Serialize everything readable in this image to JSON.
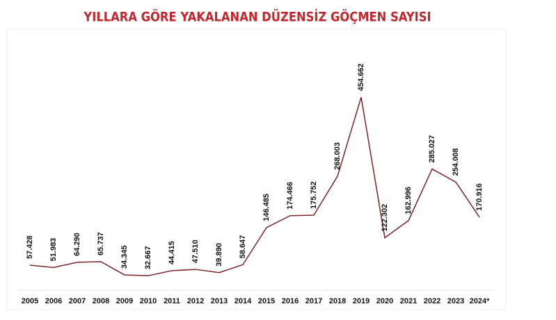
{
  "chart_data": {
    "type": "line",
    "title": "YILLARA GÖRE YAKALANAN DÜZENSİZ GÖÇMEN SAYISI",
    "categories": [
      "2005",
      "2006",
      "2007",
      "2008",
      "2009",
      "2010",
      "2011",
      "2012",
      "2013",
      "2014",
      "2015",
      "2016",
      "2017",
      "2018",
      "2019",
      "2020",
      "2021",
      "2022",
      "2023",
      "2024*"
    ],
    "values": [
      57428,
      51983,
      64290,
      65737,
      34345,
      32667,
      44415,
      47510,
      39890,
      58647,
      146485,
      174466,
      175752,
      268003,
      454662,
      122302,
      162996,
      285027,
      254008,
      170916
    ],
    "value_labels": [
      "57.428",
      "51.983",
      "64.290",
      "65.737",
      "34.345",
      "32.667",
      "44.415",
      "47.510",
      "39.890",
      "58.647",
      "146.485",
      "174.466",
      "175.752",
      "268.003",
      "454.662",
      "122.302",
      "162.996",
      "285.027",
      "254.008",
      "170.916"
    ],
    "color": "#7b2326"
  }
}
